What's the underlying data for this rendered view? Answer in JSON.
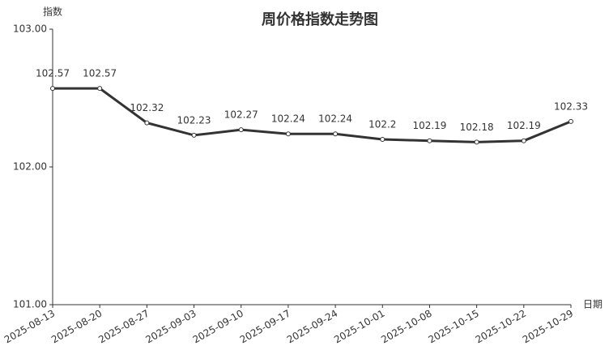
{
  "chart_data": {
    "type": "line",
    "title": "周价格指数走势图",
    "y_label": "指数",
    "x_label": "日期",
    "categories": [
      "2025-08-13",
      "2025-08-20",
      "2025-08-27",
      "2025-09-03",
      "2025-09-10",
      "2025-09-17",
      "2025-09-24",
      "2025-10-01",
      "2025-10-08",
      "2025-10-15",
      "2025-10-22",
      "2025-10-29"
    ],
    "values": [
      102.57,
      102.57,
      102.32,
      102.23,
      102.27,
      102.24,
      102.24,
      102.2,
      102.19,
      102.18,
      102.19,
      102.33
    ],
    "color": "#333333",
    "ylim": [
      101,
      103
    ],
    "yticks": [
      {
        "value": 101,
        "label": "101.00"
      },
      {
        "value": 102,
        "label": "102.00"
      },
      {
        "value": 103,
        "label": "103.00"
      }
    ]
  }
}
